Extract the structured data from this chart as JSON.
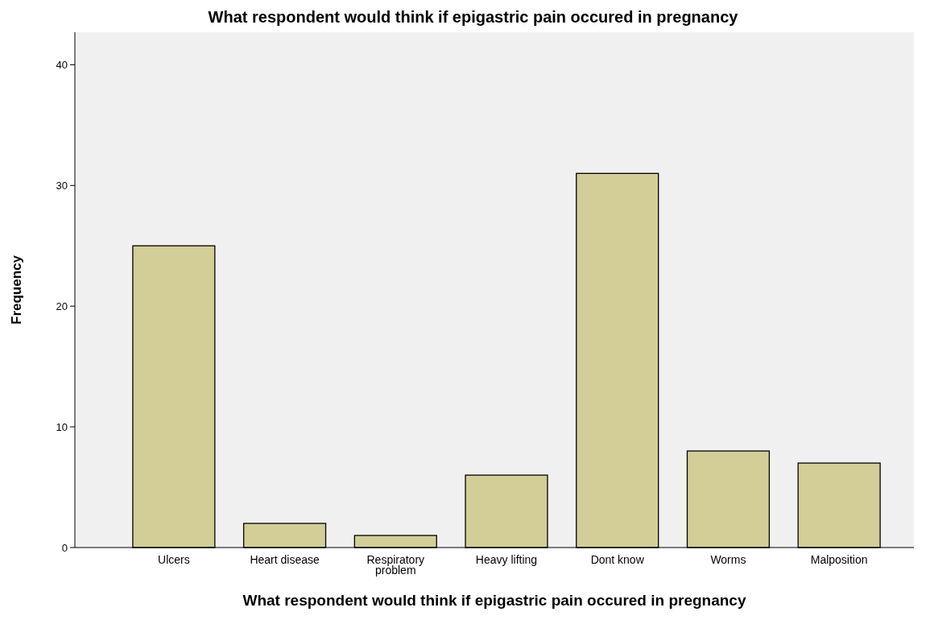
{
  "chart_data": {
    "type": "bar",
    "title": "What respondent would think if epigastric pain occured in pregnancy",
    "xlabel": "What respondent would think if epigastric pain occured in pregnancy",
    "ylabel": "Frequency",
    "categories": [
      "Ulcers",
      "Heart disease",
      "Respiratory problem",
      "Heavy lifting",
      "Dont know",
      "Worms",
      "Malposition"
    ],
    "values": [
      25,
      2,
      1,
      6,
      31,
      8,
      7
    ],
    "color": "#d3ce97",
    "ylim": [
      0,
      42.7
    ],
    "yticks": [
      0,
      10,
      20,
      30,
      40
    ],
    "grid": false
  }
}
